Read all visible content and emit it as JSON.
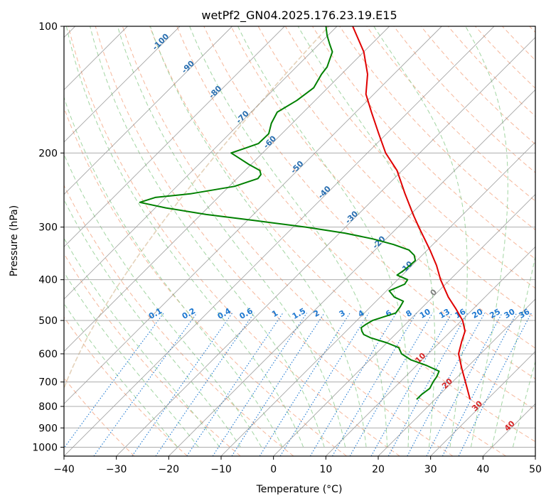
{
  "chart_data": {
    "type": "line",
    "title": "wetPf2_GN04.2025.176.23.19.E15",
    "xlabel": "Temperature (°C)",
    "ylabel": "Pressure (hPa)",
    "xlim": [
      -40,
      50
    ],
    "ylim": [
      1050,
      100
    ],
    "y_scale": "log",
    "x_ticks": [
      -40,
      -30,
      -20,
      -10,
      0,
      10,
      20,
      30,
      40,
      50
    ],
    "x_tick_labels": [
      "−40",
      "−30",
      "−20",
      "−10",
      "0",
      "10",
      "20",
      "30",
      "40",
      "50"
    ],
    "y_ticks": [
      100,
      200,
      300,
      400,
      500,
      600,
      700,
      800,
      900,
      1000
    ],
    "y_tick_labels": [
      "100",
      "200",
      "300",
      "400",
      "500",
      "600",
      "700",
      "800",
      "900",
      "1000"
    ],
    "grid": true,
    "skew": 1.0,
    "isotherm_labels": [
      {
        "text": "-100",
        "color": "#2a6fb0"
      },
      {
        "text": "-90",
        "color": "#2a6fb0"
      },
      {
        "text": "-80",
        "color": "#2a6fb0"
      },
      {
        "text": "-70",
        "color": "#2a6fb0"
      },
      {
        "text": "-60",
        "color": "#2a6fb0"
      },
      {
        "text": "-50",
        "color": "#2a6fb0"
      },
      {
        "text": "-40",
        "color": "#2a6fb0"
      },
      {
        "text": "-30",
        "color": "#2a6fb0"
      },
      {
        "text": "-20",
        "color": "#2a6fb0"
      },
      {
        "text": "-10",
        "color": "#2a6fb0"
      },
      {
        "text": "0",
        "color": "#808080"
      },
      {
        "text": "10",
        "color": "#d62728"
      },
      {
        "text": "20",
        "color": "#d62728"
      },
      {
        "text": "30",
        "color": "#d62728"
      },
      {
        "text": "40",
        "color": "#d62728"
      }
    ],
    "mixing_ratio_labels": [
      "0.1",
      "0.2",
      "0.4",
      "0.6",
      "1",
      "1.5",
      "2",
      "3",
      "4",
      "6",
      "8",
      "10",
      "13",
      "16",
      "20",
      "25",
      "30",
      "36"
    ],
    "colors": {
      "temperature": "#e00000",
      "dewpoint": "#008000",
      "isotherm": "#808080",
      "isobar": "#a0a0a0",
      "dry_adiabat": "#f4a582",
      "moist_adiabat": "#98d098",
      "mixing_ratio": "#1e78d0",
      "lcl_curve": "#d2b48c"
    },
    "series": [
      {
        "name": "",
        "kind": "temperature",
        "p": [
          770,
          700,
          650,
          600,
          560,
          530,
          500,
          470,
          440,
          400,
          370,
          340,
          300,
          280,
          250,
          220,
          200,
          180,
          160,
          145,
          130,
          115,
          100
        ],
        "t": [
          26.7,
          22.5,
          19.2,
          15.8,
          14.0,
          12.7,
          10.2,
          6.8,
          3.0,
          -1.8,
          -5.3,
          -9.5,
          -16.0,
          -19.5,
          -25.0,
          -31.0,
          -36.5,
          -41.5,
          -47.0,
          -51.5,
          -55.0,
          -60.0,
          -67.0
        ]
      },
      {
        "name": "",
        "kind": "dewpoint",
        "p": [
          770,
          750,
          725,
          700,
          680,
          660,
          640,
          620,
          600,
          580,
          565,
          550,
          540,
          530,
          520,
          510,
          500,
          480,
          465,
          450,
          440,
          425,
          410,
          400,
          390,
          380,
          370,
          360,
          350,
          340,
          330,
          320,
          310,
          300,
          290,
          280,
          270,
          262,
          255,
          250,
          240,
          230,
          225,
          220,
          213,
          205,
          200,
          195,
          190,
          180,
          170,
          160,
          150,
          140,
          130,
          125,
          115,
          110,
          105,
          100
        ],
        "t": [
          16.5,
          16.5,
          16.9,
          16.3,
          16.0,
          15.4,
          12.0,
          7.8,
          4.9,
          3.2,
          0.0,
          -4.0,
          -6.0,
          -7.0,
          -7.8,
          -7.5,
          -7.0,
          -4.0,
          -4.3,
          -4.8,
          -7.3,
          -9.5,
          -7.8,
          -8.1,
          -11.0,
          -10.6,
          -10.4,
          -10.3,
          -11.5,
          -13.5,
          -17.5,
          -22.5,
          -29.0,
          -37.5,
          -48.0,
          -59.0,
          -68.0,
          -74.0,
          -72.0,
          -66.0,
          -59.0,
          -56.0,
          -56.2,
          -57.2,
          -60.4,
          -63.8,
          -66.0,
          -64.3,
          -62.6,
          -62.5,
          -64.0,
          -65.0,
          -63.5,
          -62.7,
          -63.8,
          -64.1,
          -66.0,
          -68.1,
          -70.2,
          -72.1
        ]
      }
    ]
  }
}
